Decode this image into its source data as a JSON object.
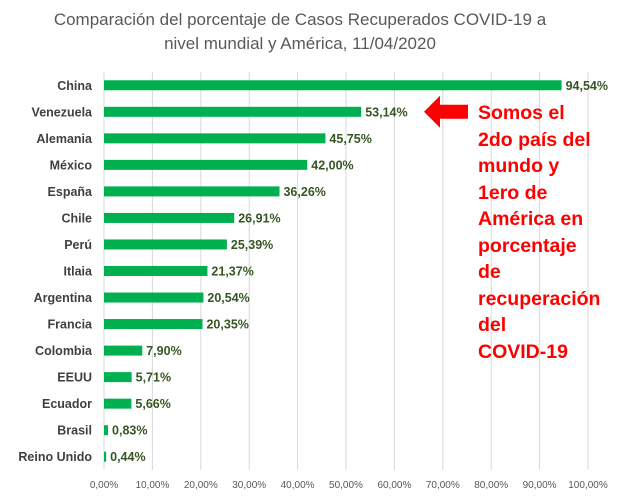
{
  "chart_data": {
    "type": "bar",
    "orientation": "horizontal",
    "title_lines": [
      "Comparación del porcentaje de Casos Recuperados COVID-19 a",
      "nivel mundial y América, 11/04/2020"
    ],
    "categories": [
      "China",
      "Venezuela",
      "Alemania",
      "México",
      "España",
      "Chile",
      "Perú",
      "Itlaia",
      "Argentina",
      "Francia",
      "Colombia",
      "EEUU",
      "Ecuador",
      "Brasil",
      "Reino Unido"
    ],
    "values": [
      94.54,
      53.14,
      45.75,
      42.0,
      36.26,
      26.91,
      25.39,
      21.37,
      20.54,
      20.35,
      7.9,
      5.71,
      5.66,
      0.83,
      0.44
    ],
    "data_labels": [
      "94,54%",
      "53,14%",
      "45,75%",
      "42,00%",
      "36,26%",
      "26,91%",
      "25,39%",
      "21,37%",
      "20,54%",
      "20,35%",
      "7,90%",
      "5,71%",
      "5,66%",
      "0,83%",
      "0,44%"
    ],
    "xlim": [
      0,
      100
    ],
    "xticks": [
      "0,00%",
      "10,00%",
      "20,00%",
      "30,00%",
      "40,00%",
      "50,00%",
      "60,00%",
      "70,00%",
      "80,00%",
      "90,00%",
      "100,00%"
    ],
    "grid": true,
    "bar_color": "#00b050",
    "label_color": "#375623"
  },
  "annotation": {
    "lines": [
      "Somos el",
      "2do país del",
      "mundo y",
      "1ero de",
      "América  en",
      "porcentaje",
      "de",
      "recuperación",
      "del",
      "COVID-19"
    ],
    "color": "#ff0000",
    "arrow_color": "#ff0000",
    "arrow_points_to": "Venezuela"
  }
}
